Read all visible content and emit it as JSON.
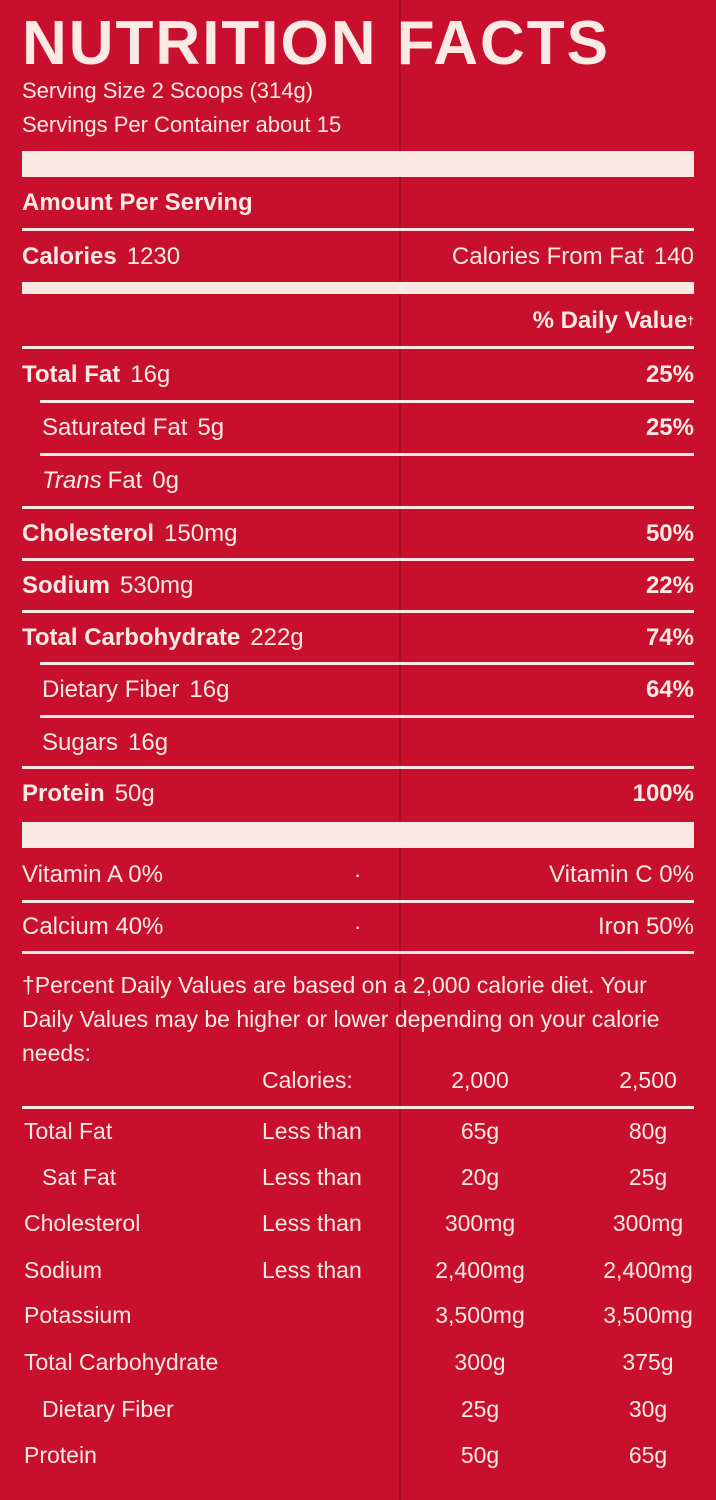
{
  "label": {
    "title": "NUTRITION FACTS",
    "serving_size": "Serving Size 2 Scoops (314g)",
    "servings_per_container": "Servings Per Container about 15",
    "amount_per_serving": "Amount Per Serving",
    "calories_label": "Calories",
    "calories_value": "1230",
    "calories_from_fat_label": "Calories From Fat",
    "calories_from_fat_value": "140",
    "daily_value_header": "% Daily Value",
    "dagger": "†"
  },
  "nutrients": [
    {
      "name": "Total Fat",
      "amount": "16g",
      "dv": "25%"
    },
    {
      "name": "Saturated Fat",
      "amount": "5g",
      "dv": "25%"
    },
    {
      "name_italic": "Trans",
      "name": "Fat",
      "amount": "0g",
      "dv": ""
    },
    {
      "name": "Cholesterol",
      "amount": "150mg",
      "dv": "50%"
    },
    {
      "name": "Sodium",
      "amount": "530mg",
      "dv": "22%"
    },
    {
      "name": "Total Carbohydrate",
      "amount": "222g",
      "dv": "74%"
    },
    {
      "name": "Dietary Fiber",
      "amount": "16g",
      "dv": "64%"
    },
    {
      "name": "Sugars",
      "amount": "16g",
      "dv": ""
    },
    {
      "name": "Protein",
      "amount": "50g",
      "dv": "100%"
    }
  ],
  "vitamins": {
    "vitamin_a": "Vitamin A  0%",
    "vitamin_c": "Vitamin C  0%",
    "calcium": "Calcium  40%",
    "iron": "Iron  50%",
    "separator": "·"
  },
  "footnote": "†Percent Daily Values are based on a 2,000 calorie diet. Your Daily Values may be higher or lower depending on your calorie needs:",
  "footer_table": {
    "header": [
      "Calories:",
      "2,000",
      "2,500"
    ],
    "rows": [
      {
        "name": "Total Fat",
        "qualifier": "Less than",
        "v2000": "65g",
        "v2500": "80g"
      },
      {
        "name": "Sat Fat",
        "qualifier": "Less than",
        "v2000": "20g",
        "v2500": "25g"
      },
      {
        "name": "Cholesterol",
        "qualifier": "Less than",
        "v2000": "300mg",
        "v2500": "300mg"
      },
      {
        "name": "Sodium",
        "qualifier": "Less than",
        "v2000": "2,400mg",
        "v2500": "2,400mg"
      },
      {
        "name": "Potassium",
        "qualifier": "",
        "v2000": "3,500mg",
        "v2500": "3,500mg"
      },
      {
        "name": "Total Carbohydrate",
        "qualifier": "",
        "v2000": "300g",
        "v2500": "375g"
      },
      {
        "name": "Dietary Fiber",
        "qualifier": "",
        "v2000": "25g",
        "v2500": "30g"
      },
      {
        "name": "Protein",
        "qualifier": "",
        "v2000": "50g",
        "v2500": "65g"
      }
    ]
  },
  "colors": {
    "background": "#c8102e",
    "text": "#fbe9e3"
  }
}
